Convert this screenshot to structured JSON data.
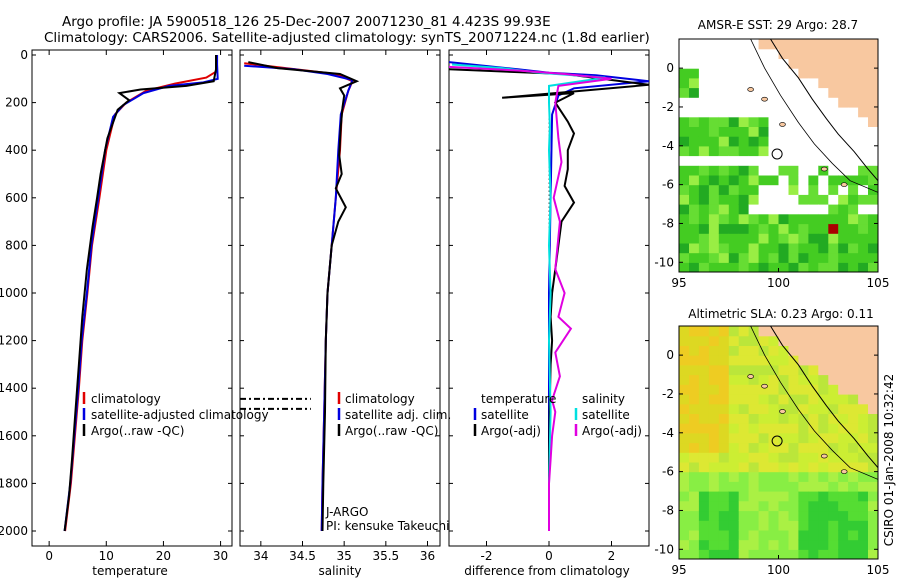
{
  "title": {
    "line1": "Argo profile: JA 5900518_126 25-Dec-2007 20071230_81  4.423S 99.93E",
    "line2": "Climatology: CARS2006. Satellite-adjusted climatology: synTS_20071224.nc (1.8d earlier)"
  },
  "side_label": "CSIRO 01-Jan-2008 10:32:42",
  "colors": {
    "red": "#e00000",
    "blue": "#0000e0",
    "black": "#000000",
    "cyan": "#00e0e0",
    "magenta": "#e000e0"
  },
  "chart_data": [
    {
      "type": "line",
      "id": "temperature",
      "xlabel": "temperature",
      "ylabel": "",
      "xlim": [
        -3,
        32
      ],
      "ylim": [
        2080,
        0
      ],
      "xticks": [
        0,
        10,
        20,
        30
      ],
      "yticks": [
        0,
        200,
        400,
        600,
        800,
        1000,
        1200,
        1400,
        1600,
        1800,
        2000
      ],
      "legend": [
        "climatology",
        "satellite-adjusted climatology",
        "Argo(..raw -QC)"
      ],
      "legend_placement": "lower-center",
      "series": [
        {
          "name": "climatology",
          "color": "red",
          "points": [
            [
              29.3,
              0
            ],
            [
              29.3,
              40
            ],
            [
              29.2,
              70
            ],
            [
              27.5,
              95
            ],
            [
              22,
              120
            ],
            [
              17,
              150
            ],
            [
              13.5,
              200
            ],
            [
              11.5,
              250
            ],
            [
              10,
              400
            ],
            [
              8.8,
              600
            ],
            [
              7.5,
              800
            ],
            [
              6.7,
              1000
            ],
            [
              5.8,
              1200
            ],
            [
              5.2,
              1400
            ],
            [
              4.5,
              1600
            ],
            [
              3.8,
              1800
            ],
            [
              2.8,
              2000
            ]
          ]
        },
        {
          "name": "satellite-adjusted climatology",
          "color": "blue",
          "points": [
            [
              29.4,
              0
            ],
            [
              29.4,
              40
            ],
            [
              29.5,
              100
            ],
            [
              27,
              115
            ],
            [
              21,
              130
            ],
            [
              16.5,
              160
            ],
            [
              13,
              210
            ],
            [
              11.2,
              260
            ],
            [
              9.8,
              400
            ],
            [
              8.6,
              600
            ],
            [
              7.4,
              800
            ],
            [
              6.6,
              1000
            ],
            [
              5.7,
              1200
            ],
            [
              5.1,
              1400
            ],
            [
              4.4,
              1600
            ],
            [
              3.7,
              1800
            ],
            [
              2.7,
              2000
            ]
          ]
        },
        {
          "name": "Argo(..raw -QC)",
          "color": "black",
          "points": [
            [
              29.2,
              0
            ],
            [
              29.2,
              60
            ],
            [
              28.8,
              110
            ],
            [
              24,
              130
            ],
            [
              16,
              145
            ],
            [
              12.3,
              160
            ],
            [
              14,
              190
            ],
            [
              12,
              230
            ],
            [
              10.2,
              350
            ],
            [
              9,
              500
            ],
            [
              8.4,
              600
            ],
            [
              7.6,
              720
            ],
            [
              6.6,
              900
            ],
            [
              5.8,
              1100
            ],
            [
              5.2,
              1300
            ],
            [
              4.6,
              1500
            ],
            [
              4,
              1700
            ],
            [
              3.5,
              1850
            ],
            [
              2.7,
              2000
            ]
          ]
        }
      ]
    },
    {
      "type": "line",
      "id": "salinity",
      "xlabel": "salinity",
      "xlim": [
        33.75,
        36.15
      ],
      "ylim": [
        2080,
        0
      ],
      "xticks": [
        34,
        34.5,
        35,
        35.5,
        36
      ],
      "legend": [
        "climatology",
        "satellite adj. clim.",
        "Argo(..raw -QC)"
      ],
      "legend_placement": "lower-right",
      "annotation": [
        "J-ARGO",
        "PI: kensuke Takeuchi"
      ],
      "markers": [
        1445,
        1487
      ],
      "series": [
        {
          "name": "climatology",
          "color": "red",
          "points": [
            [
              33.8,
              35
            ],
            [
              34.3,
              55
            ],
            [
              34.9,
              80
            ],
            [
              35.1,
              110
            ],
            [
              35.05,
              150
            ],
            [
              34.97,
              250
            ],
            [
              34.95,
              400
            ],
            [
              34.9,
              600
            ],
            [
              34.85,
              800
            ],
            [
              34.8,
              1000
            ],
            [
              34.78,
              1200
            ],
            [
              34.76,
              1500
            ],
            [
              34.74,
              1800
            ],
            [
              34.73,
              2000
            ]
          ]
        },
        {
          "name": "satellite adj. clim.",
          "color": "blue",
          "points": [
            [
              33.8,
              45
            ],
            [
              34.4,
              60
            ],
            [
              34.8,
              80
            ],
            [
              35.1,
              105
            ],
            [
              35.05,
              150
            ],
            [
              34.96,
              250
            ],
            [
              34.93,
              400
            ],
            [
              34.9,
              600
            ],
            [
              34.85,
              800
            ],
            [
              34.8,
              1000
            ],
            [
              34.78,
              1200
            ],
            [
              34.76,
              1500
            ],
            [
              34.74,
              1800
            ],
            [
              34.73,
              2000
            ]
          ]
        },
        {
          "name": "Argo(..raw -QC)",
          "color": "black",
          "points": [
            [
              33.85,
              30
            ],
            [
              34.2,
              55
            ],
            [
              34.95,
              80
            ],
            [
              35.15,
              110
            ],
            [
              34.95,
              140
            ],
            [
              35,
              170
            ],
            [
              34.98,
              220
            ],
            [
              34.96,
              300
            ],
            [
              34.94,
              420
            ],
            [
              34.97,
              500
            ],
            [
              34.9,
              560
            ],
            [
              35.02,
              640
            ],
            [
              34.93,
              700
            ],
            [
              34.85,
              800
            ],
            [
              34.8,
              1000
            ],
            [
              34.78,
              1200
            ],
            [
              34.77,
              1500
            ],
            [
              34.75,
              1800
            ],
            [
              34.74,
              2000
            ]
          ]
        }
      ]
    },
    {
      "type": "line",
      "id": "difference",
      "xlabel": "difference from climatology",
      "xlim": [
        -3.2,
        3.2
      ],
      "ylim": [
        2080,
        0
      ],
      "xticks": [
        -2,
        0,
        2
      ],
      "legend_headers": [
        "temperature",
        "salinity"
      ],
      "legend": [
        "satellite",
        "Argo(-adj)",
        "satellite",
        "Argo(-adj)"
      ],
      "legend_placement": "lower-center",
      "series": [
        {
          "name": "temperature satellite",
          "color": "blue",
          "points": [
            [
              -3.2,
              30
            ],
            [
              -1,
              60
            ],
            [
              0,
              75
            ],
            [
              1.5,
              85
            ],
            [
              3.2,
              110
            ],
            [
              0.8,
              140
            ],
            [
              0.3,
              170
            ],
            [
              0.1,
              250
            ],
            [
              0.05,
              600
            ],
            [
              0,
              1000
            ],
            [
              0,
              1500
            ],
            [
              0,
              2000
            ]
          ]
        },
        {
          "name": "temperature Argo(-adj)",
          "color": "black",
          "points": [
            [
              -3.2,
              60
            ],
            [
              0.5,
              80
            ],
            [
              3.2,
              125
            ],
            [
              -1.5,
              180
            ],
            [
              0.8,
              160
            ],
            [
              0.2,
              200
            ],
            [
              0.6,
              280
            ],
            [
              0.8,
              330
            ],
            [
              0.6,
              400
            ],
            [
              0.6,
              480
            ],
            [
              0.5,
              550
            ],
            [
              0.8,
              620
            ],
            [
              0.4,
              700
            ],
            [
              0.3,
              800
            ],
            [
              0.2,
              900
            ],
            [
              0.1,
              1000
            ],
            [
              0.05,
              1100
            ],
            [
              0.1,
              1200
            ],
            [
              0.05,
              1300
            ],
            [
              0.02,
              1500
            ],
            [
              0,
              1700
            ],
            [
              0,
              1800
            ],
            [
              0,
              2000
            ]
          ]
        },
        {
          "name": "salinity satellite",
          "color": "cyan",
          "points": [
            [
              -3.1,
              40
            ],
            [
              -1.5,
              55
            ],
            [
              -0.3,
              75
            ],
            [
              1.8,
              95
            ],
            [
              0,
              130
            ],
            [
              0,
              200
            ],
            [
              0.03,
              300
            ],
            [
              0,
              400
            ],
            [
              0.05,
              600
            ],
            [
              0,
              800
            ],
            [
              0.05,
              1000
            ],
            [
              0,
              1200
            ],
            [
              0.05,
              1500
            ],
            [
              0,
              1800
            ],
            [
              0,
              2000
            ]
          ]
        },
        {
          "name": "salinity Argo(-adj)",
          "color": "magenta",
          "points": [
            [
              -3.2,
              50
            ],
            [
              -1,
              65
            ],
            [
              0.5,
              80
            ],
            [
              2,
              100
            ],
            [
              0.3,
              130
            ],
            [
              0.2,
              200
            ],
            [
              0.3,
              350
            ],
            [
              0.4,
              450
            ],
            [
              0.15,
              600
            ],
            [
              0.35,
              700
            ],
            [
              0.2,
              900
            ],
            [
              0.5,
              1000
            ],
            [
              0.3,
              1100
            ],
            [
              0.7,
              1150
            ],
            [
              0.2,
              1250
            ],
            [
              0.35,
              1350
            ],
            [
              0.1,
              1450
            ],
            [
              0.2,
              1500
            ],
            [
              0.1,
              1600
            ],
            [
              0.05,
              1700
            ],
            [
              0,
              1800
            ],
            [
              0,
              2000
            ]
          ]
        }
      ]
    },
    {
      "type": "heatmap",
      "id": "sst_map",
      "title": "AMSR-E SST: 29 Argo: 28.7",
      "xlim": [
        95,
        105
      ],
      "ylim": [
        -10.5,
        1.5
      ],
      "xticks": [
        95,
        100,
        105
      ],
      "yticks": [
        0,
        -2,
        -4,
        -6,
        -8,
        -10
      ],
      "argo_location": [
        99.93,
        -4.423
      ]
    },
    {
      "type": "heatmap",
      "id": "sla_map",
      "title": "Altimetric SLA: 0.23 Argo: 0.11",
      "xlim": [
        95,
        105
      ],
      "ylim": [
        -10.5,
        1.5
      ],
      "xticks": [
        95,
        100,
        105
      ],
      "yticks": [
        0,
        -2,
        -4,
        -6,
        -8,
        -10
      ],
      "argo_location": [
        99.93,
        -4.423
      ]
    }
  ]
}
